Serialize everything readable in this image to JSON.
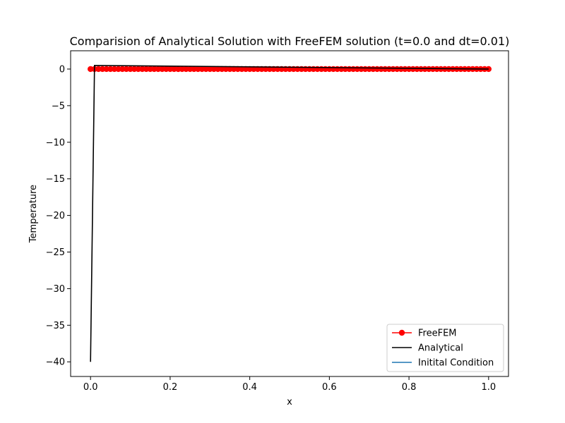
{
  "chart_data": {
    "type": "line",
    "title": "Comparision of Analytical Solution with FreeFEM solution (t=0.0 and dt=0.01)",
    "xlabel": "x",
    "ylabel": "Temperature",
    "xlim": [
      -0.05,
      1.05
    ],
    "ylim": [
      -42,
      2.5
    ],
    "xticks": [
      0.0,
      0.2,
      0.4,
      0.6,
      0.8,
      1.0
    ],
    "xtick_labels": [
      "0.0",
      "0.2",
      "0.4",
      "0.6",
      "0.8",
      "1.0"
    ],
    "yticks": [
      0,
      -5,
      -10,
      -15,
      -20,
      -25,
      -30,
      -35,
      -40
    ],
    "ytick_labels": [
      "0",
      "−5",
      "−10",
      "−15",
      "−20",
      "−25",
      "−30",
      "−35",
      "−40"
    ],
    "grid": false,
    "legend_position": "lower-right",
    "series": [
      {
        "name": "FreeFEM",
        "color": "#ff0000",
        "marker": "circle",
        "x_start": 0.0,
        "x_end": 1.0,
        "n_points": 101,
        "value": 0
      },
      {
        "name": "Analytical",
        "color": "#000000",
        "marker": "none",
        "x": [
          0.0,
          0.01,
          1.0
        ],
        "y": [
          -40,
          0.5,
          0.0
        ]
      },
      {
        "name": "Initital Condition",
        "color": "#1f77b4",
        "marker": "none",
        "x": [
          0.0,
          1.0
        ],
        "y": [
          0,
          0
        ]
      }
    ]
  }
}
